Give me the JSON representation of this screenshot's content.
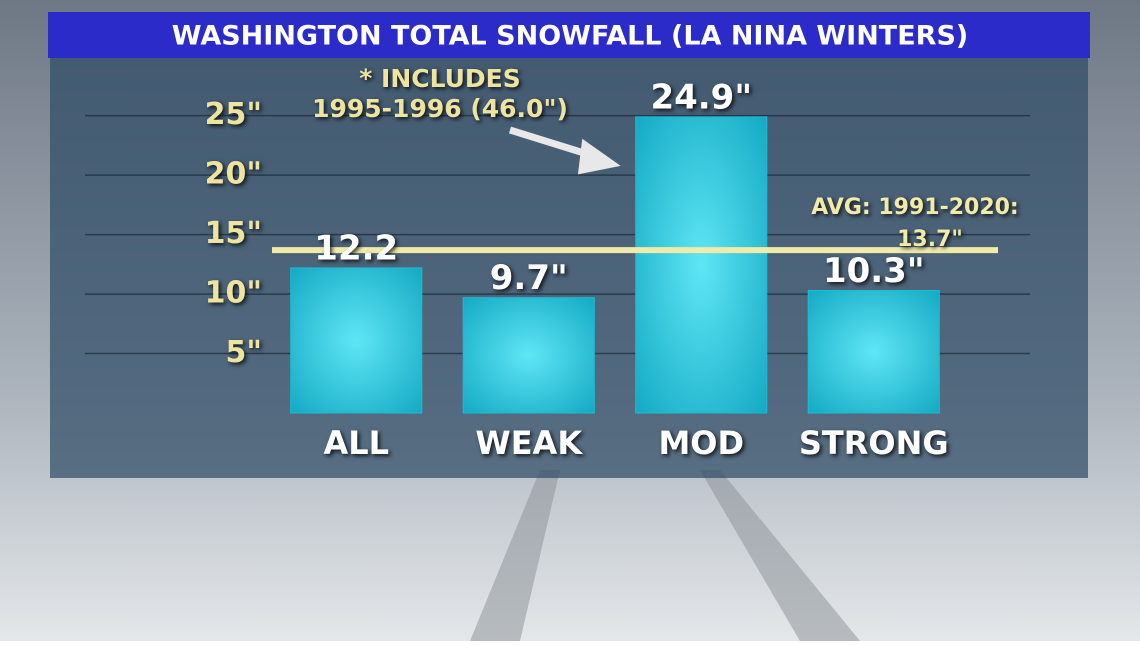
{
  "chart_data": {
    "type": "bar",
    "title": "WASHINGTON TOTAL SNOWFALL (LA NINA WINTERS)",
    "categories": [
      "ALL",
      "WEAK",
      "MOD",
      "STRONG"
    ],
    "values": [
      12.2,
      9.7,
      24.9,
      10.3
    ],
    "value_labels": [
      "12.2",
      "9.7\"",
      "24.9\"",
      "10.3\""
    ],
    "color": "#1cbcd4",
    "ylim": [
      0,
      28
    ],
    "yticks": [
      {
        "value": 5,
        "label": "5\""
      },
      {
        "value": 10,
        "label": "10\""
      },
      {
        "value": 15,
        "label": "15\""
      },
      {
        "value": 20,
        "label": "20\""
      },
      {
        "value": 25,
        "label": "25\""
      }
    ],
    "grid": true,
    "reference_line": {
      "value": 13.7,
      "label_lines": [
        "AVG: 1991-2020:",
        "13.7\""
      ],
      "color": "#f2eaa8"
    },
    "annotation": {
      "lines": [
        "* INCLUDES",
        "1995-1996 (46.0\")"
      ],
      "target": 2
    }
  }
}
